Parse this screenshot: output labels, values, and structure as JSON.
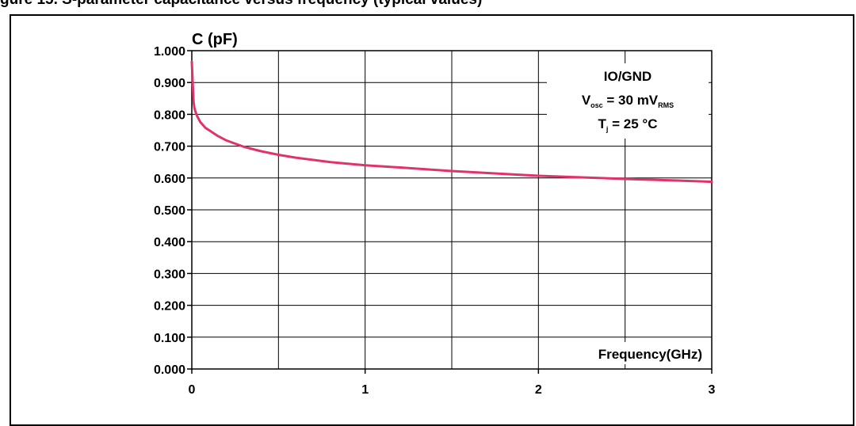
{
  "title": "gure 15. S-parameter capacitance versus frequency (typical values)",
  "chart_data": {
    "type": "line",
    "ylabel": "C (pF)",
    "xlabel": "Frequency(GHz)",
    "xlim": [
      0,
      3
    ],
    "ylim": [
      0,
      1
    ],
    "x_ticks": [
      "0",
      "1",
      "2",
      "3"
    ],
    "y_ticks": [
      "0.000",
      "0.100",
      "0.200",
      "0.300",
      "0.400",
      "0.500",
      "0.600",
      "0.700",
      "0.800",
      "0.900",
      "1.000"
    ],
    "grid": true,
    "line_color": "#e0336a",
    "annotation": {
      "line1": "IO/GND",
      "line2_main": "V",
      "line2_sub": "osc",
      "line2_rest": " = 30 mV",
      "line2_sub2": "RMS",
      "line3_main": "T",
      "line3_sub": "j",
      "line3_rest": " = 25 °C"
    },
    "series": [
      {
        "x": [
          0.0,
          0.005,
          0.01,
          0.015,
          0.02,
          0.03,
          0.05,
          0.08,
          0.1,
          0.15,
          0.2,
          0.3,
          0.4,
          0.5,
          0.6,
          0.8,
          1.0,
          1.2,
          1.5,
          1.8,
          2.0,
          2.2,
          2.5,
          2.8,
          3.0
        ],
        "y": [
          0.965,
          0.9,
          0.84,
          0.82,
          0.81,
          0.795,
          0.775,
          0.757,
          0.75,
          0.732,
          0.718,
          0.698,
          0.684,
          0.673,
          0.664,
          0.65,
          0.64,
          0.633,
          0.622,
          0.613,
          0.607,
          0.603,
          0.597,
          0.592,
          0.588
        ]
      }
    ]
  }
}
